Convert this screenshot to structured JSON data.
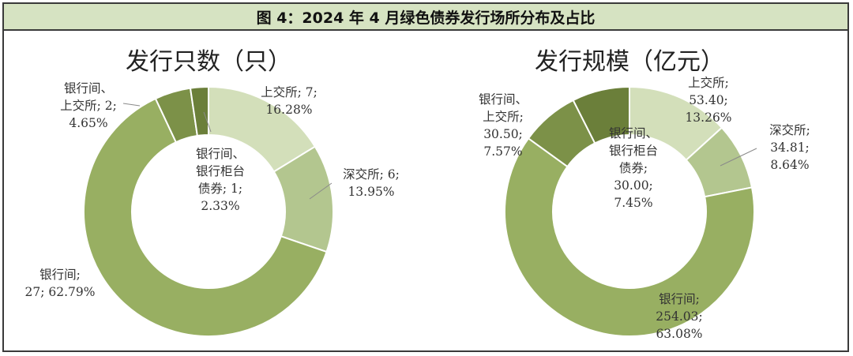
{
  "header": {
    "title": "图 4：2024 年 4 月绿色债券发行场所分布及占比"
  },
  "colors": {
    "banner_bg": "#d6e3c2",
    "border": "#3a3a3a",
    "slice_shanghai": "#d3dfba",
    "slice_shenzhen": "#b3c68f",
    "slice_interbank": "#98af62",
    "slice_interbank_shanghai": "#7c9148",
    "slice_interbank_counter": "#6b7f3a"
  },
  "chart_data": [
    {
      "type": "pie",
      "title": "发行只数（只）",
      "slices": [
        {
          "category": "上交所",
          "value": 7,
          "percent": "16.28%",
          "label": [
            "上交所; 7;",
            "16.28%"
          ],
          "color": "#d3dfba"
        },
        {
          "category": "深交所",
          "value": 6,
          "percent": "13.95%",
          "label": [
            "深交所; 6;",
            "13.95%"
          ],
          "color": "#b3c68f"
        },
        {
          "category": "银行间",
          "value": 27,
          "percent": "62.79%",
          "label": [
            "银行间;",
            "27; 62.79%"
          ],
          "color": "#98af62"
        },
        {
          "category": "银行间、上交所",
          "value": 2,
          "percent": "4.65%",
          "label": [
            "银行间、",
            "上交所; 2;",
            "4.65%"
          ],
          "color": "#7c9148"
        },
        {
          "category": "银行间、银行柜台债券",
          "value": 1,
          "percent": "2.33%",
          "label": [
            "银行间、",
            "银行柜台",
            "债券; 1;",
            "2.33%"
          ],
          "color": "#6b7f3a"
        }
      ]
    },
    {
      "type": "pie",
      "title": "发行规模（亿元）",
      "slices": [
        {
          "category": "上交所",
          "value": 53.4,
          "percent": "13.26%",
          "label": [
            "上交所;",
            "53.40;",
            "13.26%"
          ],
          "color": "#d3dfba"
        },
        {
          "category": "深交所",
          "value": 34.81,
          "percent": "8.64%",
          "label": [
            "深交所;",
            "34.81;",
            "8.64%"
          ],
          "color": "#b3c68f"
        },
        {
          "category": "银行间",
          "value": 254.03,
          "percent": "63.08%",
          "label": [
            "银行间;",
            "254.03;",
            "63.08%"
          ],
          "color": "#98af62"
        },
        {
          "category": "银行间、上交所",
          "value": 30.5,
          "percent": "7.57%",
          "label": [
            "银行间、",
            "上交所;",
            "30.50;",
            "7.57%"
          ],
          "color": "#7c9148"
        },
        {
          "category": "银行间、银行柜台债券",
          "value": 30.0,
          "percent": "7.45%",
          "label": [
            "银行间、",
            "银行柜台",
            "债券;",
            "30.00;",
            "7.45%"
          ],
          "color": "#6b7f3a"
        }
      ]
    }
  ]
}
